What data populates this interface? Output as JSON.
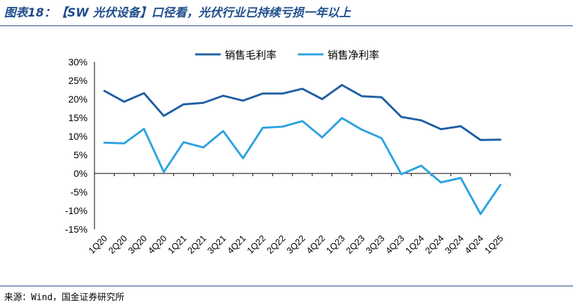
{
  "header": {
    "title": "图表18：【SW 光伏设备】口径看，光伏行业已持续亏损一年以上"
  },
  "footer": {
    "source": "来源：Wind，国金证券研究所"
  },
  "chart_data": {
    "type": "line",
    "categories": [
      "1Q20",
      "2Q20",
      "3Q20",
      "4Q20",
      "1Q21",
      "2Q21",
      "3Q21",
      "4Q21",
      "1Q22",
      "2Q22",
      "3Q22",
      "4Q22",
      "1Q23",
      "2Q23",
      "3Q23",
      "4Q23",
      "1Q24",
      "2Q24",
      "3Q24",
      "4Q24",
      "1Q25"
    ],
    "series": [
      {
        "name": "销售毛利率",
        "color": "#1f5fa3",
        "values": [
          22.2,
          19.3,
          21.6,
          15.5,
          18.6,
          19.0,
          20.9,
          19.6,
          21.5,
          21.5,
          22.8,
          20.0,
          23.8,
          20.8,
          20.5,
          15.2,
          14.3,
          11.9,
          12.7,
          9.0,
          9.1
        ]
      },
      {
        "name": "销售净利率",
        "color": "#2ea3e0",
        "values": [
          8.3,
          8.1,
          12.0,
          0.4,
          8.4,
          7.0,
          11.4,
          4.1,
          12.3,
          12.6,
          14.1,
          9.7,
          14.9,
          11.8,
          9.5,
          -0.2,
          2.1,
          -2.4,
          -1.2,
          -10.9,
          -3.1
        ]
      }
    ],
    "y_ticks": [
      "30%",
      "25%",
      "20%",
      "15%",
      "10%",
      "5%",
      "0%",
      "-5%",
      "-10%",
      "-15%"
    ],
    "ylim": [
      -15,
      30
    ],
    "legend_position": "top-center",
    "grid": false
  }
}
